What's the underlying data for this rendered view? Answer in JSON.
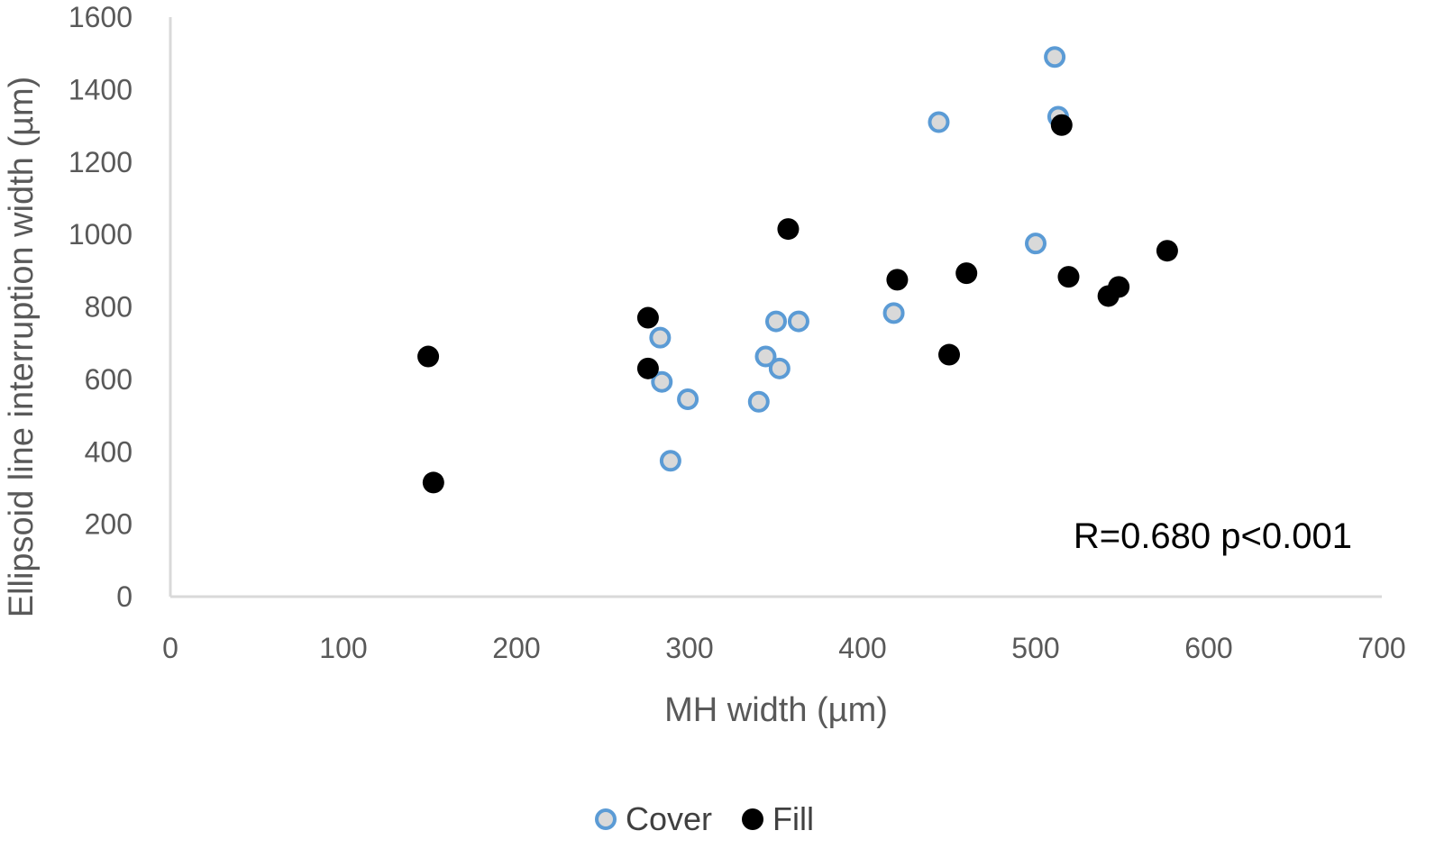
{
  "chart_data": {
    "type": "scatter",
    "xlabel": "MH width (µm)",
    "ylabel": "Ellipsoid line interruption width (µm)",
    "xlim": [
      0,
      700
    ],
    "ylim": [
      0,
      1600
    ],
    "x_ticks": [
      "0",
      "100",
      "200",
      "300",
      "400",
      "500",
      "600",
      "700"
    ],
    "y_ticks": [
      "0",
      "200",
      "400",
      "600",
      "800",
      "1000",
      "1200",
      "1400",
      "1600"
    ],
    "grid": false,
    "legend_position": "bottom",
    "annotation": "R=0.680 p<0.001",
    "series": [
      {
        "name": "Cover",
        "fill": "#d9d9d9",
        "stroke": "#5b9bd5",
        "points": [
          {
            "x": 511,
            "y": 1490
          },
          {
            "x": 513,
            "y": 1325
          },
          {
            "x": 444,
            "y": 1310
          },
          {
            "x": 500,
            "y": 975
          },
          {
            "x": 418,
            "y": 783
          },
          {
            "x": 350,
            "y": 760
          },
          {
            "x": 363,
            "y": 760
          },
          {
            "x": 283,
            "y": 715
          },
          {
            "x": 344,
            "y": 663
          },
          {
            "x": 352,
            "y": 630
          },
          {
            "x": 284,
            "y": 593
          },
          {
            "x": 299,
            "y": 545
          },
          {
            "x": 340,
            "y": 538
          },
          {
            "x": 289,
            "y": 375
          }
        ]
      },
      {
        "name": "Fill",
        "fill": "#000000",
        "stroke": "#000000",
        "points": [
          {
            "x": 515,
            "y": 1302
          },
          {
            "x": 357,
            "y": 1015
          },
          {
            "x": 576,
            "y": 955
          },
          {
            "x": 460,
            "y": 893
          },
          {
            "x": 519,
            "y": 883
          },
          {
            "x": 420,
            "y": 875
          },
          {
            "x": 548,
            "y": 855
          },
          {
            "x": 542,
            "y": 830
          },
          {
            "x": 276,
            "y": 770
          },
          {
            "x": 450,
            "y": 668
          },
          {
            "x": 149,
            "y": 663
          },
          {
            "x": 276,
            "y": 630
          },
          {
            "x": 152,
            "y": 315
          }
        ]
      }
    ]
  }
}
